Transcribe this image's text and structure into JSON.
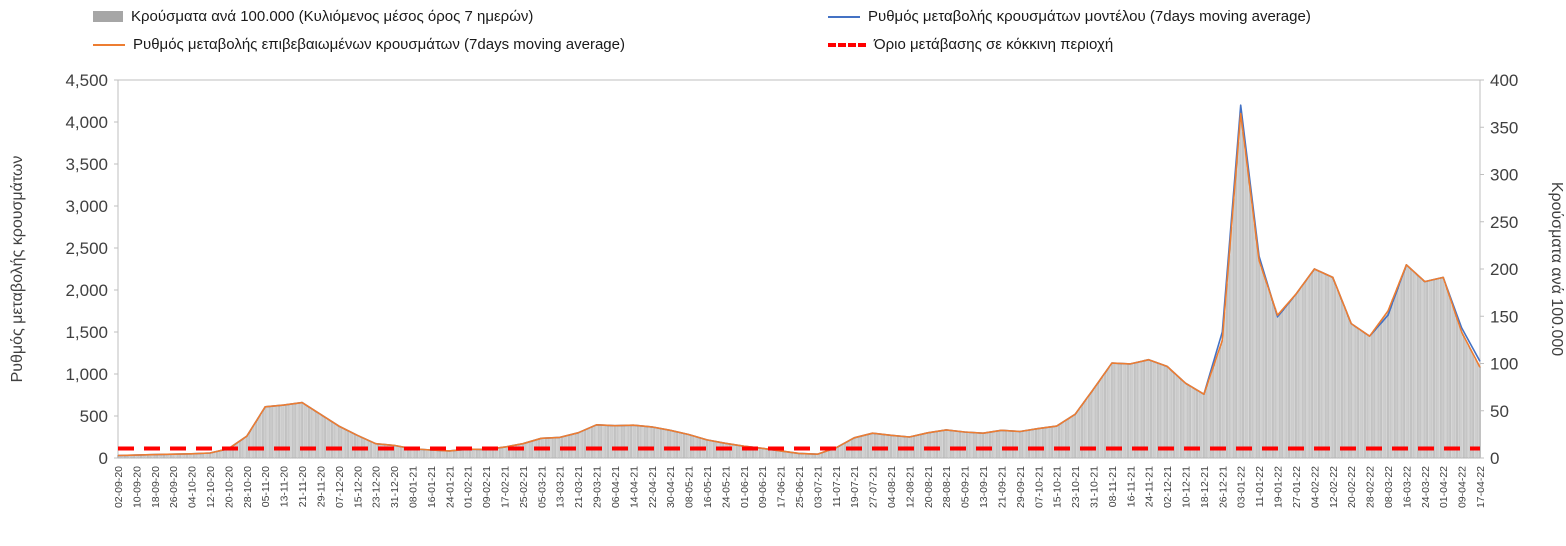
{
  "legend": {
    "bars": "Κρούσματα ανά 100.000  (Κυλιόμενος μέσος όρος 7 ημερών)",
    "model": "Ρυθμός μεταβολής κρουσμάτων μοντέλου (7days moving average)",
    "confirmed": "Ρυθμός μεταβολής επιβεβαιωμένων κρουσμάτων (7days moving average)",
    "threshold": "Όριο μετάβασης σε κόκκινη περιοχή"
  },
  "axes": {
    "left_title": "Ρυθμός μεταβολής κρουσμάτων",
    "right_title": "Κρούσματα ανά 100.000",
    "left_ticks": [
      "0",
      "500",
      "1,000",
      "1,500",
      "2,000",
      "2,500",
      "3,000",
      "3,500",
      "4,000",
      "4,500"
    ],
    "right_ticks": [
      "0",
      "50",
      "100",
      "150",
      "200",
      "250",
      "300",
      "350",
      "400"
    ]
  },
  "chart_data": {
    "type": "combo bar+line (dual axis)",
    "title": "",
    "grid": false,
    "legend_position": "top",
    "left_ylim": [
      0,
      4500
    ],
    "right_ylim": [
      0,
      400
    ],
    "x": [
      "02-09-20",
      "10-09-20",
      "18-09-20",
      "26-09-20",
      "04-10-20",
      "12-10-20",
      "20-10-20",
      "28-10-20",
      "05-11-20",
      "13-11-20",
      "21-11-20",
      "29-11-20",
      "07-12-20",
      "15-12-20",
      "23-12-20",
      "31-12-20",
      "08-01-21",
      "16-01-21",
      "24-01-21",
      "01-02-21",
      "09-02-21",
      "17-02-21",
      "25-02-21",
      "05-03-21",
      "13-03-21",
      "21-03-21",
      "29-03-21",
      "06-04-21",
      "14-04-21",
      "22-04-21",
      "30-04-21",
      "08-05-21",
      "16-05-21",
      "24-05-21",
      "01-06-21",
      "09-06-21",
      "17-06-21",
      "25-06-21",
      "03-07-21",
      "11-07-21",
      "19-07-21",
      "27-07-21",
      "04-08-21",
      "12-08-21",
      "20-08-21",
      "28-08-21",
      "05-09-21",
      "13-09-21",
      "21-09-21",
      "29-09-21",
      "07-10-21",
      "15-10-21",
      "23-10-21",
      "31-10-21",
      "08-11-21",
      "16-11-21",
      "24-11-21",
      "02-12-21",
      "10-12-21",
      "18-12-21",
      "26-12-21",
      "03-01-22",
      "11-01-22",
      "19-01-22",
      "27-01-22",
      "04-02-22",
      "12-02-22",
      "20-02-22",
      "28-02-22",
      "08-03-22",
      "16-03-22",
      "24-03-22",
      "01-04-22",
      "09-04-22",
      "17-04-22"
    ],
    "series": [
      {
        "name": "Κρούσματα ανά 100.000  (Κυλιόμενος μέσος όρος 7 ημερών)",
        "type": "bar",
        "axis": "right",
        "color": "#d4d4d4",
        "stroke": "#a0a0a0",
        "values": [
          2.7,
          3.1,
          3.6,
          4,
          4.4,
          5.3,
          9.8,
          23.1,
          54.2,
          56,
          58.7,
          46.2,
          33.8,
          24,
          15.1,
          13.3,
          9.8,
          8.4,
          7.6,
          9.3,
          8.9,
          11.6,
          15.1,
          20.9,
          21.8,
          26.7,
          35.1,
          34.2,
          34.7,
          32.9,
          29.3,
          24.9,
          19.1,
          15.6,
          12.4,
          10.2,
          7.6,
          4.9,
          4,
          10.7,
          21.3,
          26.2,
          24,
          22.2,
          26.7,
          29.8,
          27.6,
          26.2,
          29.3,
          28,
          31.1,
          33.8,
          46.2,
          72.9,
          100.4,
          99.6,
          104,
          96.9,
          79.1,
          67.6,
          124.4,
          364.4,
          208.9,
          151.1,
          173.3,
          200,
          191.1,
          142.2,
          128.9,
          155.6,
          204.4,
          186.7,
          191.1,
          133.3,
          96
        ]
      },
      {
        "name": "Ρυθμός μεταβολής κρουσμάτων μοντέλου (7days moving average)",
        "type": "line",
        "axis": "left",
        "color": "#4472c4",
        "values": [
          30,
          35,
          40,
          45,
          50,
          60,
          110,
          260,
          610,
          630,
          660,
          520,
          380,
          270,
          170,
          150,
          110,
          95,
          85,
          105,
          100,
          130,
          170,
          235,
          245,
          300,
          395,
          385,
          390,
          370,
          330,
          280,
          215,
          175,
          140,
          115,
          85,
          55,
          45,
          120,
          240,
          295,
          270,
          250,
          300,
          335,
          310,
          295,
          330,
          315,
          350,
          380,
          520,
          820,
          1130,
          1120,
          1170,
          1090,
          890,
          760,
          1500,
          4200,
          2400,
          1680,
          1950,
          2250,
          2150,
          1600,
          1450,
          1700,
          2300,
          2100,
          2150,
          1550,
          1150
        ]
      },
      {
        "name": "Ρυθμός μεταβολής επιβεβαιωμένων κρουσμάτων (7days moving average)",
        "type": "line",
        "axis": "left",
        "color": "#ed7d31",
        "values": [
          30,
          35,
          40,
          45,
          50,
          60,
          110,
          260,
          610,
          630,
          660,
          520,
          380,
          270,
          170,
          150,
          110,
          95,
          85,
          105,
          100,
          130,
          170,
          235,
          245,
          300,
          395,
          385,
          390,
          370,
          330,
          280,
          215,
          175,
          140,
          115,
          85,
          55,
          45,
          120,
          240,
          295,
          270,
          250,
          300,
          335,
          310,
          295,
          330,
          315,
          350,
          380,
          520,
          820,
          1130,
          1120,
          1170,
          1090,
          890,
          760,
          1400,
          4100,
          2350,
          1700,
          1950,
          2250,
          2150,
          1600,
          1450,
          1750,
          2300,
          2100,
          2150,
          1500,
          1080
        ]
      },
      {
        "name": "Όριο μετάβασης σε κόκκινη περιοχή",
        "type": "threshold",
        "axis": "right",
        "color": "#ff0000",
        "value": 10
      }
    ]
  }
}
